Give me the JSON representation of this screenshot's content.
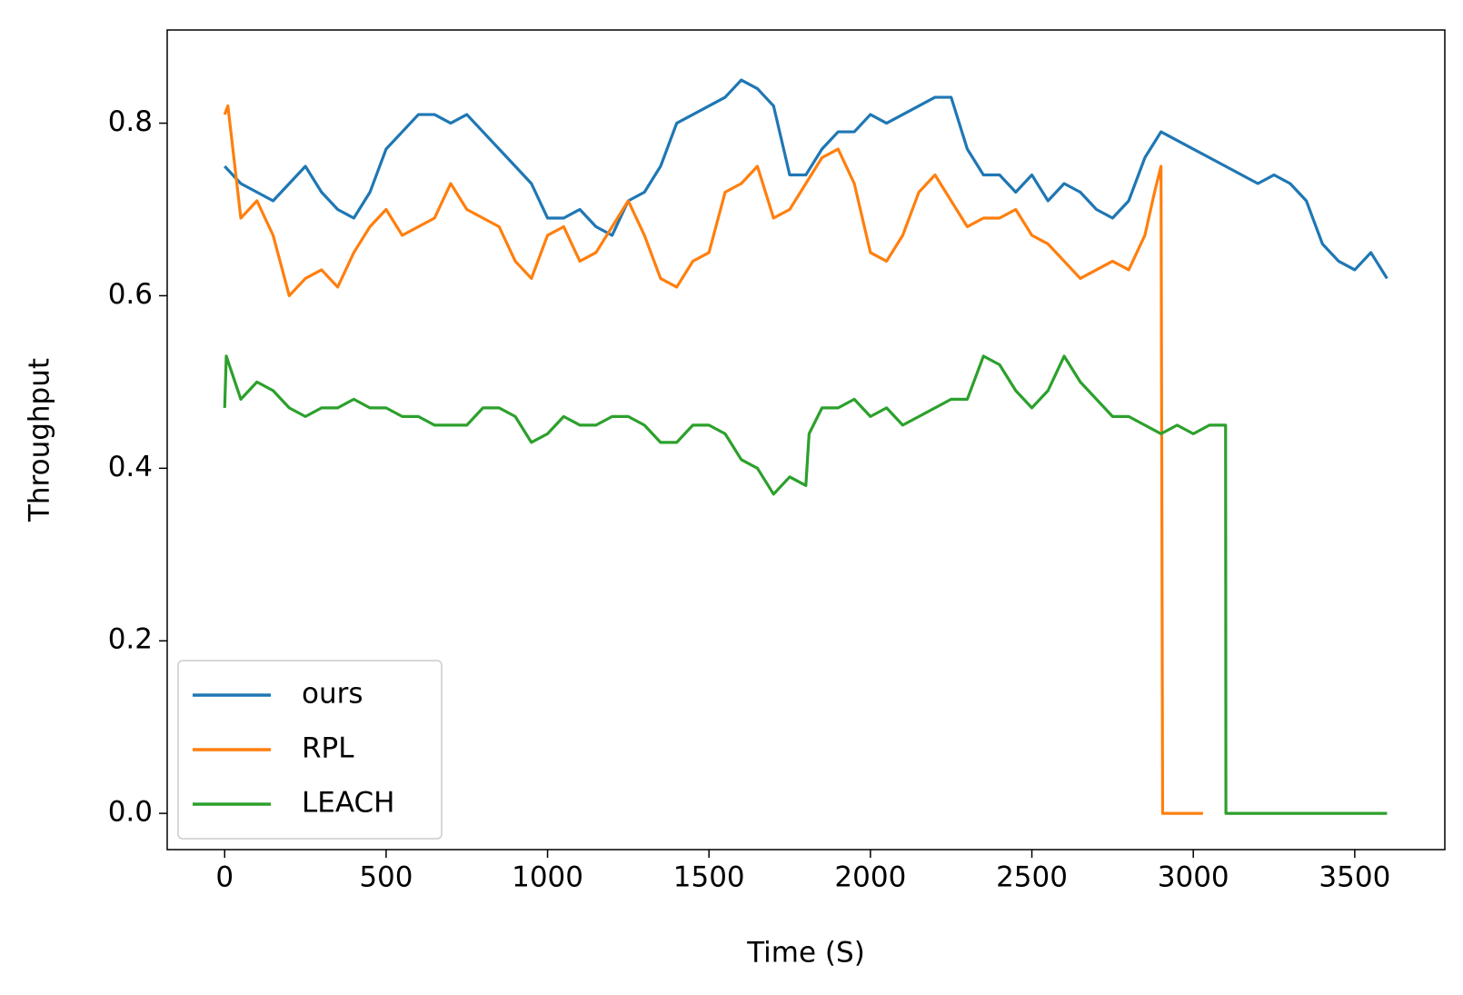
{
  "chart_data": {
    "type": "line",
    "xlabel": "Time (S)",
    "ylabel": "Throughput",
    "xlim": [
      -178,
      3779
    ],
    "ylim": [
      -0.042,
      0.908
    ],
    "xticks": [
      0,
      500,
      1000,
      1500,
      2000,
      2500,
      3000,
      3500
    ],
    "yticks": [
      {
        "value": 0,
        "label": "0.0"
      },
      0.2,
      0.4,
      0.6,
      0.8
    ],
    "legend": "lower left",
    "series": [
      {
        "name": "ours",
        "color": "#1f77b4",
        "x": [
          0,
          50,
          100,
          150,
          200,
          250,
          300,
          350,
          400,
          450,
          500,
          550,
          600,
          650,
          700,
          750,
          800,
          850,
          900,
          950,
          1000,
          1050,
          1100,
          1150,
          1200,
          1250,
          1300,
          1350,
          1400,
          1450,
          1500,
          1550,
          1600,
          1650,
          1700,
          1750,
          1800,
          1850,
          1900,
          1950,
          2000,
          2050,
          2100,
          2150,
          2200,
          2250,
          2300,
          2350,
          2400,
          2450,
          2500,
          2550,
          2600,
          2650,
          2700,
          2750,
          2800,
          2850,
          2900,
          2950,
          3000,
          3050,
          3100,
          3150,
          3200,
          3250,
          3300,
          3350,
          3400,
          3450,
          3500,
          3550,
          3600
        ],
        "values": [
          0.75,
          0.73,
          0.72,
          0.71,
          0.73,
          0.75,
          0.72,
          0.7,
          0.69,
          0.72,
          0.77,
          0.79,
          0.81,
          0.81,
          0.8,
          0.81,
          0.79,
          0.77,
          0.75,
          0.73,
          0.69,
          0.69,
          0.7,
          0.68,
          0.67,
          0.71,
          0.72,
          0.75,
          0.8,
          0.81,
          0.82,
          0.83,
          0.85,
          0.84,
          0.82,
          0.74,
          0.74,
          0.77,
          0.79,
          0.79,
          0.81,
          0.8,
          0.81,
          0.82,
          0.83,
          0.83,
          0.77,
          0.74,
          0.74,
          0.72,
          0.74,
          0.71,
          0.73,
          0.72,
          0.7,
          0.69,
          0.71,
          0.76,
          0.79,
          0.78,
          0.77,
          0.76,
          0.75,
          0.74,
          0.73,
          0.74,
          0.73,
          0.71,
          0.66,
          0.64,
          0.63,
          0.65,
          0.62
        ]
      },
      {
        "name": "RPL",
        "color": "#ff7f0e",
        "x": [
          0,
          10,
          50,
          100,
          150,
          200,
          250,
          300,
          350,
          400,
          450,
          500,
          550,
          600,
          650,
          700,
          750,
          800,
          850,
          900,
          950,
          1000,
          1050,
          1100,
          1150,
          1200,
          1250,
          1300,
          1350,
          1400,
          1450,
          1500,
          1550,
          1600,
          1650,
          1700,
          1750,
          1800,
          1850,
          1900,
          1950,
          2000,
          2050,
          2100,
          2150,
          2200,
          2250,
          2300,
          2350,
          2400,
          2450,
          2500,
          2550,
          2600,
          2650,
          2700,
          2750,
          2800,
          2850,
          2880,
          2900,
          2905,
          3030
        ],
        "values": [
          0.81,
          0.82,
          0.69,
          0.71,
          0.67,
          0.6,
          0.62,
          0.63,
          0.61,
          0.65,
          0.68,
          0.7,
          0.67,
          0.68,
          0.69,
          0.73,
          0.7,
          0.69,
          0.68,
          0.64,
          0.62,
          0.67,
          0.68,
          0.64,
          0.65,
          0.68,
          0.71,
          0.67,
          0.62,
          0.61,
          0.64,
          0.65,
          0.72,
          0.73,
          0.75,
          0.69,
          0.7,
          0.73,
          0.76,
          0.77,
          0.73,
          0.65,
          0.64,
          0.67,
          0.72,
          0.74,
          0.71,
          0.68,
          0.69,
          0.69,
          0.7,
          0.67,
          0.66,
          0.64,
          0.62,
          0.63,
          0.64,
          0.63,
          0.67,
          0.72,
          0.75,
          0,
          0
        ]
      },
      {
        "name": "LEACH",
        "color": "#2ca02c",
        "x": [
          0,
          5,
          50,
          100,
          150,
          200,
          250,
          300,
          350,
          400,
          450,
          500,
          550,
          600,
          650,
          700,
          750,
          800,
          850,
          900,
          950,
          1000,
          1050,
          1100,
          1150,
          1200,
          1250,
          1300,
          1350,
          1400,
          1450,
          1500,
          1550,
          1600,
          1650,
          1700,
          1750,
          1800,
          1810,
          1850,
          1900,
          1950,
          2000,
          2050,
          2100,
          2150,
          2200,
          2250,
          2300,
          2350,
          2400,
          2450,
          2500,
          2550,
          2600,
          2650,
          2700,
          2750,
          2800,
          2850,
          2900,
          2950,
          3000,
          3050,
          3100,
          3101,
          3600
        ],
        "values": [
          0.47,
          0.53,
          0.48,
          0.5,
          0.49,
          0.47,
          0.46,
          0.47,
          0.47,
          0.48,
          0.47,
          0.47,
          0.46,
          0.46,
          0.45,
          0.45,
          0.45,
          0.47,
          0.47,
          0.46,
          0.43,
          0.44,
          0.46,
          0.45,
          0.45,
          0.46,
          0.46,
          0.45,
          0.43,
          0.43,
          0.45,
          0.45,
          0.44,
          0.41,
          0.4,
          0.37,
          0.39,
          0.38,
          0.44,
          0.47,
          0.47,
          0.48,
          0.46,
          0.47,
          0.45,
          0.46,
          0.47,
          0.48,
          0.48,
          0.53,
          0.52,
          0.49,
          0.47,
          0.49,
          0.53,
          0.5,
          0.48,
          0.46,
          0.46,
          0.45,
          0.44,
          0.45,
          0.44,
          0.45,
          0.45,
          0,
          0
        ]
      }
    ]
  }
}
